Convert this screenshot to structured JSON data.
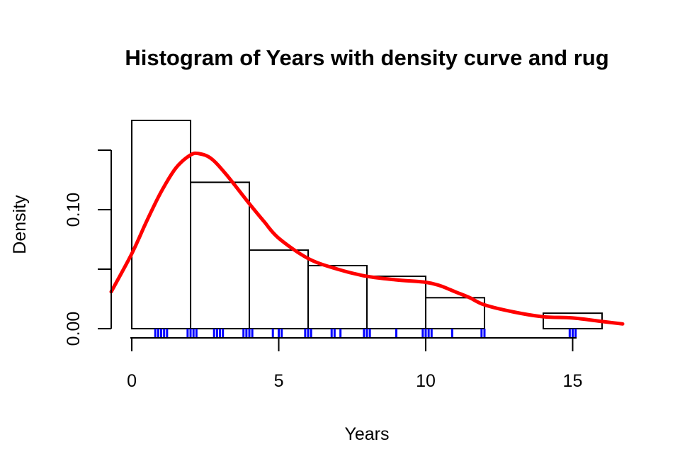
{
  "chart_data": {
    "type": "histogram",
    "title": "Histogram of Years with density curve and rug",
    "xlabel": "Years",
    "ylabel": "Density",
    "xlim": [
      -0.7,
      16.7
    ],
    "ylim": [
      0,
      0.175
    ],
    "x_ticks": [
      0,
      5,
      10,
      15
    ],
    "x_tick_labels": [
      "0",
      "5",
      "10",
      "15"
    ],
    "y_ticks": [
      0,
      0.05,
      0.1,
      0.15
    ],
    "y_tick_labels": [
      "0.00",
      "",
      "0.10",
      ""
    ],
    "bins": [
      {
        "start": 0,
        "end": 2,
        "density": 0.175
      },
      {
        "start": 2,
        "end": 4,
        "density": 0.123
      },
      {
        "start": 4,
        "end": 6,
        "density": 0.066
      },
      {
        "start": 6,
        "end": 8,
        "density": 0.053
      },
      {
        "start": 8,
        "end": 10,
        "density": 0.044
      },
      {
        "start": 10,
        "end": 12,
        "density": 0.026
      },
      {
        "start": 12,
        "end": 14,
        "density": 0.0
      },
      {
        "start": 14,
        "end": 16,
        "density": 0.013
      }
    ],
    "density_curve": {
      "color": "#ff0000",
      "x": [
        -0.7,
        0,
        0.5,
        1,
        1.5,
        2,
        2.3,
        2.7,
        3.2,
        4,
        4.5,
        5,
        6,
        7,
        8,
        9,
        10,
        10.5,
        11,
        11.5,
        12,
        13,
        14,
        15,
        16,
        16.7
      ],
      "y": [
        0.031,
        0.063,
        0.09,
        0.115,
        0.135,
        0.146,
        0.147,
        0.143,
        0.13,
        0.105,
        0.09,
        0.076,
        0.059,
        0.05,
        0.044,
        0.041,
        0.039,
        0.036,
        0.031,
        0.026,
        0.02,
        0.014,
        0.01,
        0.009,
        0.006,
        0.004
      ]
    },
    "rug": {
      "color": "#0000ff",
      "values": [
        0.8,
        0.9,
        1.0,
        1.1,
        1.2,
        1.9,
        2.0,
        2.1,
        2.2,
        2.8,
        2.9,
        3.0,
        3.1,
        3.8,
        3.9,
        4.0,
        4.1,
        4.8,
        5.0,
        5.1,
        5.9,
        6.0,
        6.1,
        6.8,
        6.9,
        7.1,
        7.9,
        8.0,
        8.1,
        9.0,
        9.9,
        10.0,
        10.1,
        10.2,
        10.9,
        11.9,
        12.0,
        14.9,
        15.0,
        15.1
      ]
    },
    "grid": false,
    "legend": "none"
  }
}
